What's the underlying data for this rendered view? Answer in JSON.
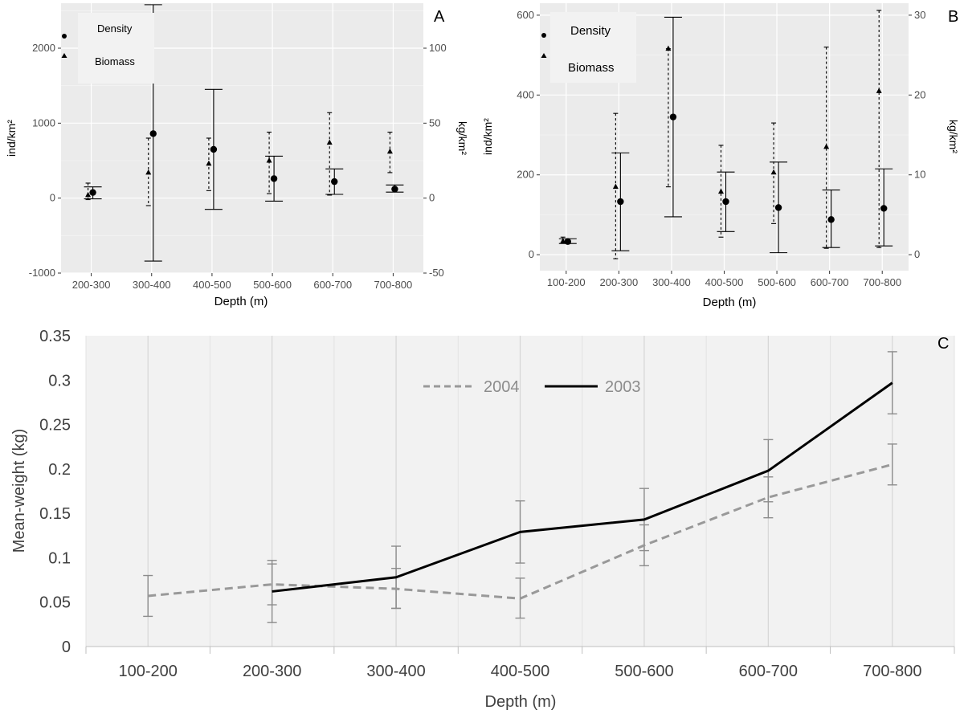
{
  "colors": {
    "panel_bg": "#ebebeb",
    "grid_major": "#ffffff",
    "ink": "#000000",
    "axis_text": "#4d4d4d",
    "c_bg": "#f2f2f2",
    "c_grid": "#d9d9d9",
    "series_2004": "#999999",
    "series_2003": "#000000",
    "errbar": "#8c8c8c"
  },
  "chart_data": [
    {
      "panel": "A",
      "type": "scatter",
      "xlabel": "Depth (m)",
      "ylabel_left": "ind/km²",
      "ylabel_right": "kg/km²",
      "categories": [
        "200-300",
        "300-400",
        "400-500",
        "500-600",
        "600-700",
        "700-800"
      ],
      "ylim_left": [
        -1000,
        2600
      ],
      "yticks_left": [
        -1000,
        0,
        1000,
        2000
      ],
      "ylim_right": [
        -50,
        130
      ],
      "yticks_right": [
        -50,
        0,
        50,
        100
      ],
      "legend": {
        "position": "top-left",
        "entries": [
          "Density",
          "Biomass"
        ]
      },
      "series": [
        {
          "name": "Density",
          "axis": "left",
          "marker": "circle",
          "line": "solid",
          "values": [
            75,
            860,
            650,
            260,
            220,
            120
          ],
          "err_low": [
            -10,
            -840,
            -150,
            -40,
            50,
            80
          ],
          "err_high": [
            150,
            2580,
            1450,
            560,
            390,
            175
          ]
        },
        {
          "name": "Biomass",
          "axis": "right",
          "marker": "triangle",
          "line": "dashed",
          "values": [
            2,
            17,
            23,
            25,
            37,
            31
          ],
          "err_low": [
            -1,
            -5,
            5,
            3,
            2,
            17
          ],
          "err_high": [
            10,
            40,
            40,
            44,
            57,
            44
          ]
        }
      ]
    },
    {
      "panel": "B",
      "type": "scatter",
      "xlabel": "Depth (m)",
      "ylabel_left": "ind/km²",
      "ylabel_right": "kg/km²",
      "categories": [
        "100-200",
        "200-300",
        "300-400",
        "400-500",
        "500-600",
        "600-700",
        "700-800"
      ],
      "ylim_left": [
        -40,
        630
      ],
      "yticks_left": [
        0,
        200,
        400,
        600
      ],
      "ylim_right": [
        -2,
        31.5
      ],
      "yticks_right": [
        0,
        10,
        20,
        30
      ],
      "legend": {
        "position": "top-left",
        "entries": [
          "Density",
          "Biomass"
        ]
      },
      "series": [
        {
          "name": "Density",
          "axis": "left",
          "marker": "circle",
          "line": "solid",
          "values": [
            33,
            133,
            345,
            133,
            118,
            88,
            116
          ],
          "err_low": [
            28,
            10,
            95,
            58,
            5,
            18,
            22
          ],
          "err_high": [
            40,
            255,
            595,
            207,
            232,
            162,
            215
          ]
        },
        {
          "name": "Biomass",
          "axis": "right",
          "marker": "triangle",
          "line": "dashed",
          "values": [
            1.7,
            8.5,
            25.8,
            7.9,
            10.3,
            13.5,
            20.5
          ],
          "err_low": [
            1.5,
            -0.5,
            8.5,
            2.2,
            3.9,
            0.8,
            0.9
          ],
          "err_high": [
            2.2,
            17.7,
            25.8,
            13.7,
            16.5,
            26.0,
            30.6
          ]
        }
      ]
    },
    {
      "panel": "C",
      "type": "line",
      "xlabel": "Depth (m)",
      "ylabel": "Mean-weight (kg)",
      "categories": [
        "100-200",
        "200-300",
        "300-400",
        "400-500",
        "500-600",
        "600-700",
        "700-800"
      ],
      "ylim": [
        0,
        0.35
      ],
      "yticks": [
        "0",
        "0.05",
        "0.1",
        "0.15",
        "0.2",
        "0.25",
        "0.3",
        "0.35"
      ],
      "legend": {
        "position": "top-center",
        "entries": [
          "2004",
          "2003"
        ]
      },
      "series": [
        {
          "name": "2004",
          "line": "dashed",
          "values": [
            0.057,
            0.07,
            0.065,
            0.054,
            0.114,
            0.168,
            0.205
          ],
          "err_low": [
            0.034,
            0.047,
            0.043,
            0.032,
            0.091,
            0.145,
            0.182
          ],
          "err_high": [
            0.08,
            0.093,
            0.088,
            0.077,
            0.137,
            0.191,
            0.228
          ]
        },
        {
          "name": "2003",
          "line": "solid",
          "values": [
            null,
            0.062,
            0.078,
            0.129,
            0.143,
            0.198,
            0.297
          ],
          "err_low": [
            null,
            0.027,
            0.043,
            0.094,
            0.108,
            0.163,
            0.262
          ],
          "err_high": [
            null,
            0.097,
            0.113,
            0.164,
            0.178,
            0.233,
            0.332
          ]
        }
      ]
    }
  ]
}
